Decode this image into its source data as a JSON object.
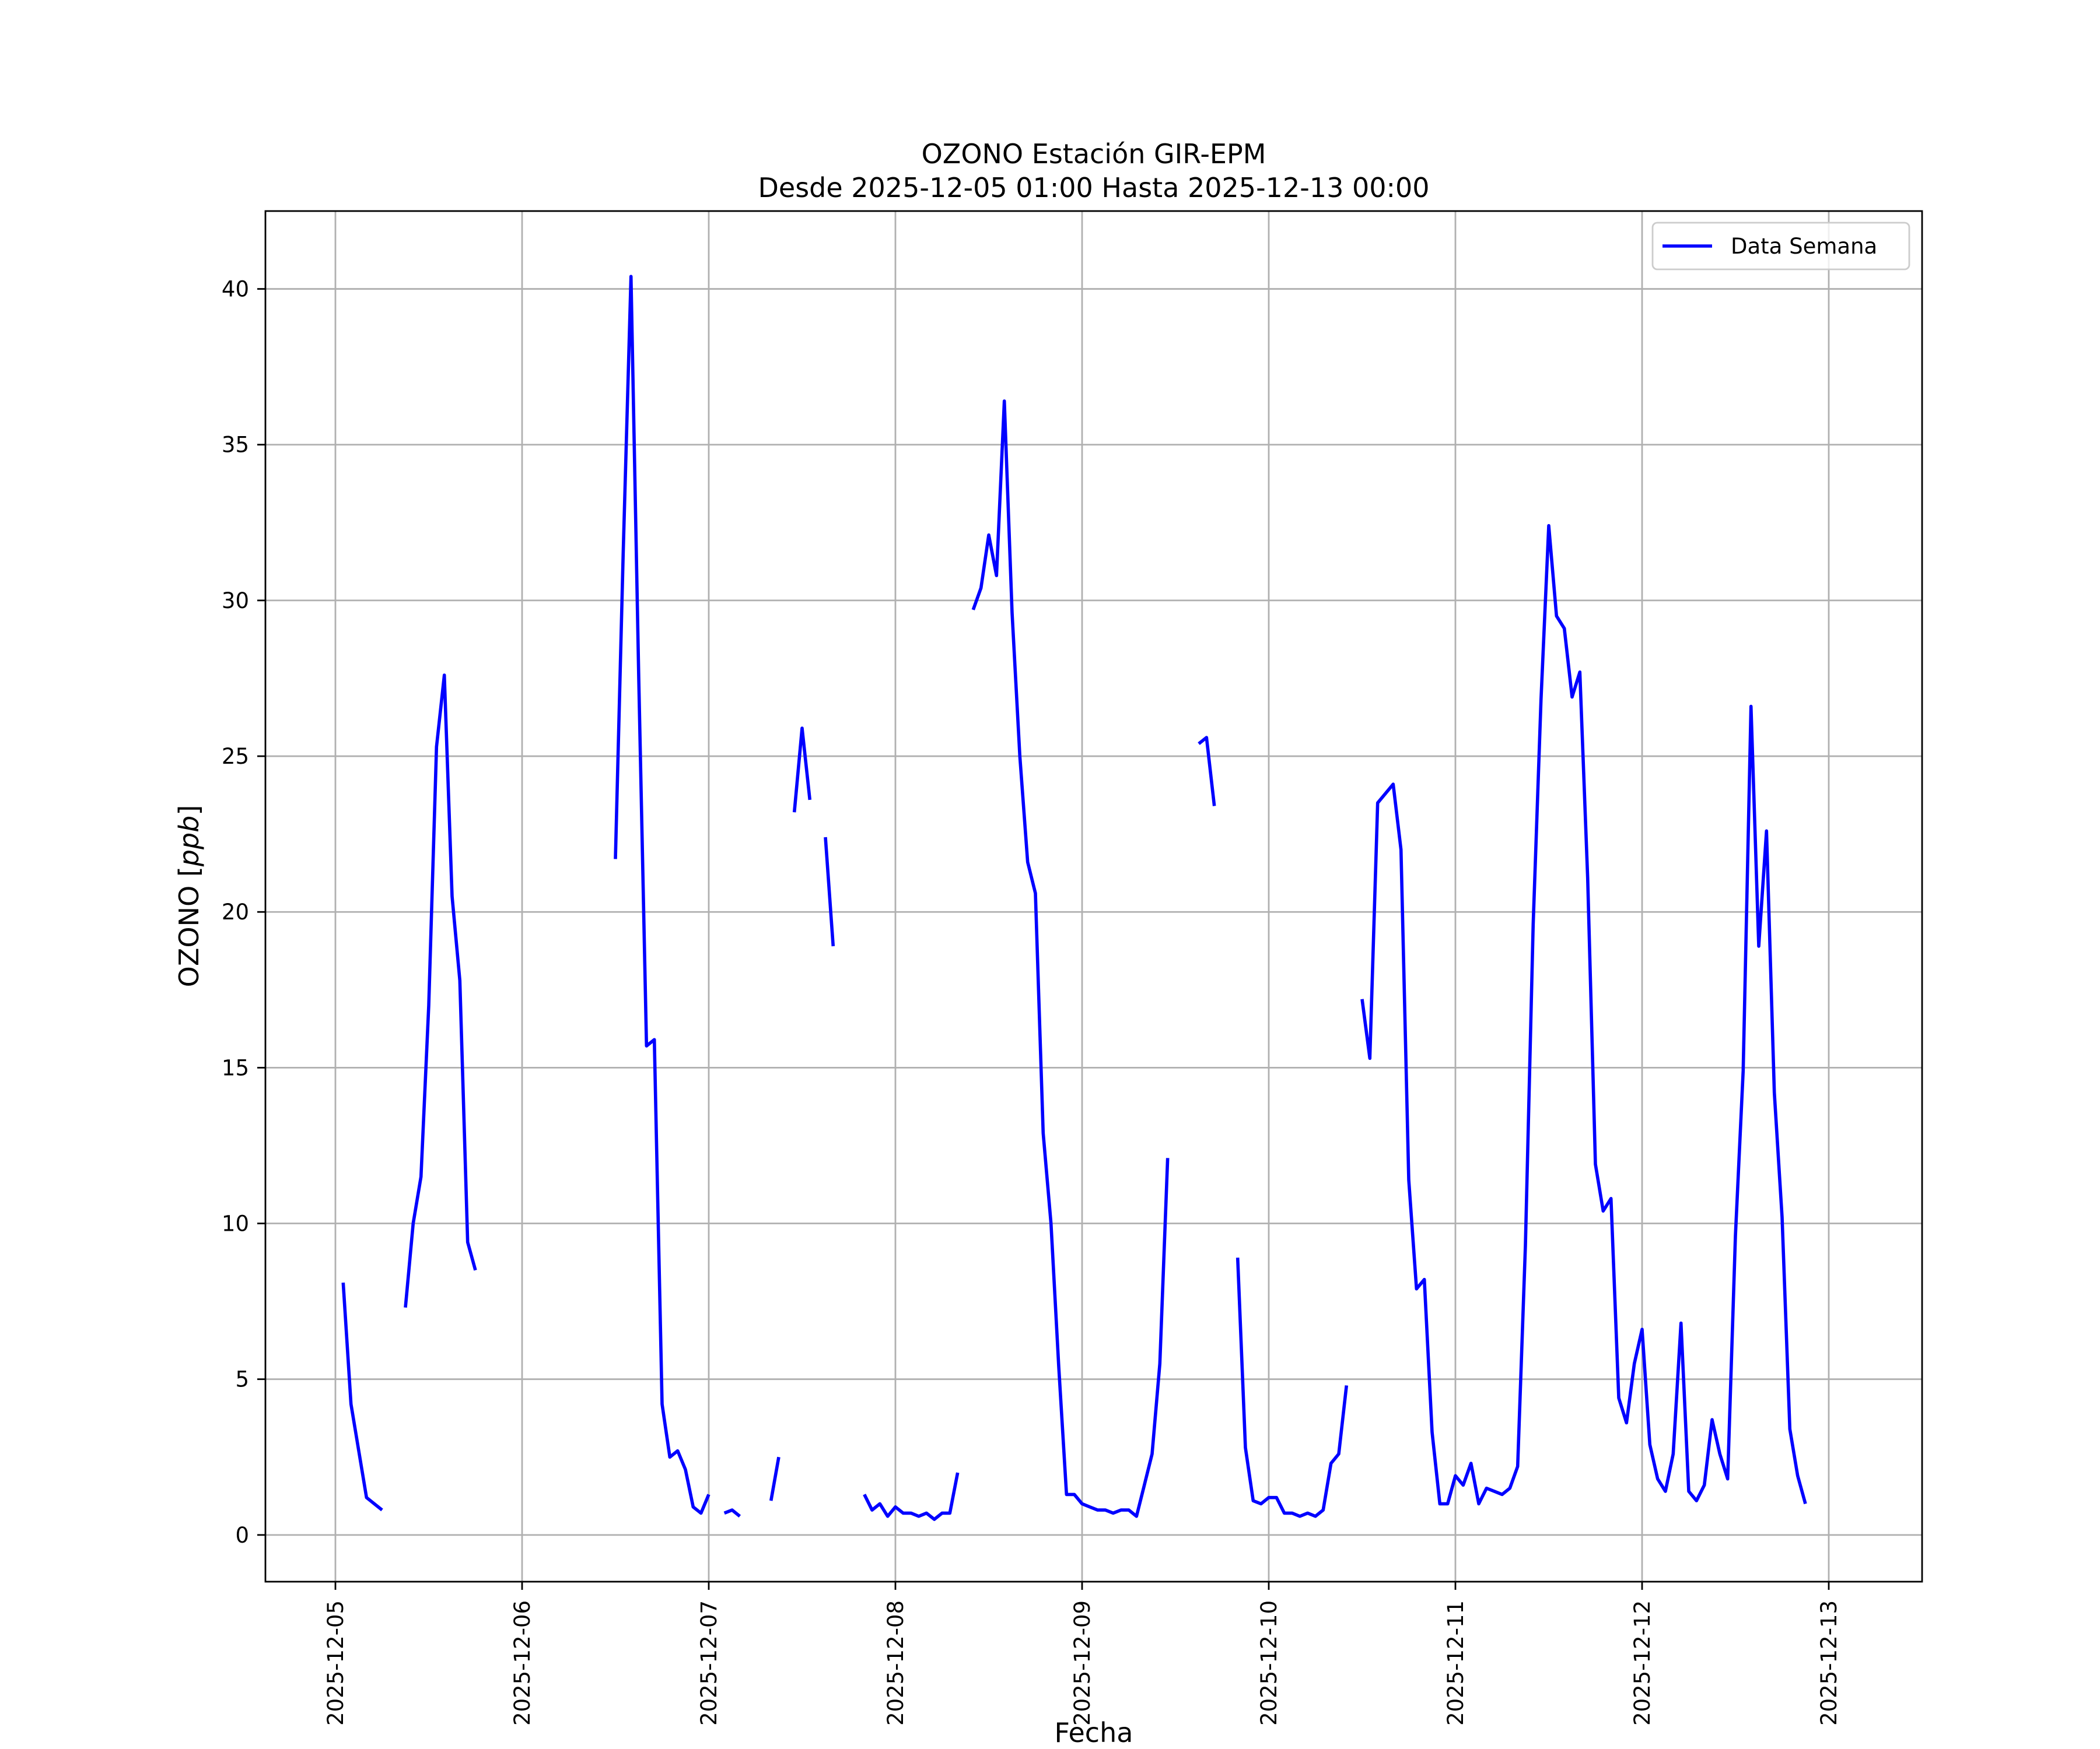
{
  "chart_data": {
    "type": "line",
    "title": "OZONO Estación GIR-EPM",
    "subtitle": "Desde 2025-12-05 01:00 Hasta 2025-12-13 00:00",
    "xlabel": "Fecha",
    "ylabel": "OZONO [ppb]",
    "ylabel_main": "OZONO [",
    "ylabel_unit": "ppb",
    "ylabel_close": "]",
    "xlim": [
      "2025-12-04 15:00",
      "2025-12-13 12:00"
    ],
    "ylim": [
      -1.5,
      42.5
    ],
    "x_ticks": [
      "2025-12-05",
      "2025-12-06",
      "2025-12-07",
      "2025-12-08",
      "2025-12-09",
      "2025-12-10",
      "2025-12-11",
      "2025-12-12",
      "2025-12-13"
    ],
    "y_ticks": [
      0,
      5,
      10,
      15,
      20,
      25,
      30,
      35,
      40
    ],
    "grid": true,
    "legend_position": "top-right",
    "colors": {
      "series": "#0000ff",
      "grid": "#b0b0b0",
      "frame": "#000000"
    },
    "series": [
      {
        "name": "Data Semana",
        "points": [
          [
            "2025-12-05 01:00",
            8.1
          ],
          [
            "2025-12-05 02:00",
            4.2
          ],
          [
            "2025-12-05 03:00",
            2.7
          ],
          [
            "2025-12-05 04:00",
            1.2
          ],
          [
            "2025-12-05 05:00",
            1.0
          ],
          [
            "2025-12-05 06:00",
            0.8
          ],
          [
            "2025-12-05 07:00",
            null
          ],
          [
            "2025-12-05 08:00",
            null
          ],
          [
            "2025-12-05 09:00",
            7.3
          ],
          [
            "2025-12-05 10:00",
            10.0
          ],
          [
            "2025-12-05 11:00",
            11.5
          ],
          [
            "2025-12-05 12:00",
            17.0
          ],
          [
            "2025-12-05 13:00",
            25.3
          ],
          [
            "2025-12-05 14:00",
            27.6
          ],
          [
            "2025-12-05 15:00",
            20.5
          ],
          [
            "2025-12-05 16:00",
            17.8
          ],
          [
            "2025-12-05 17:00",
            9.4
          ],
          [
            "2025-12-05 18:00",
            8.5
          ],
          [
            "2025-12-05 19:00",
            null
          ],
          [
            "2025-12-06 12:00",
            21.7
          ],
          [
            "2025-12-06 13:00",
            31.5
          ],
          [
            "2025-12-06 14:00",
            40.4
          ],
          [
            "2025-12-06 15:00",
            27.5
          ],
          [
            "2025-12-06 16:00",
            15.7
          ],
          [
            "2025-12-06 17:00",
            15.9
          ],
          [
            "2025-12-06 18:00",
            4.2
          ],
          [
            "2025-12-06 19:00",
            2.5
          ],
          [
            "2025-12-06 20:00",
            2.7
          ],
          [
            "2025-12-06 21:00",
            2.1
          ],
          [
            "2025-12-06 22:00",
            0.9
          ],
          [
            "2025-12-06 23:00",
            0.7
          ],
          [
            "2025-12-07 00:00",
            1.3
          ],
          [
            "2025-12-07 01:00",
            null
          ],
          [
            "2025-12-07 02:00",
            0.7
          ],
          [
            "2025-12-07 03:00",
            0.8
          ],
          [
            "2025-12-07 04:00",
            0.6
          ],
          [
            "2025-12-07 05:00",
            null
          ],
          [
            "2025-12-07 06:00",
            null
          ],
          [
            "2025-12-07 07:00",
            null
          ],
          [
            "2025-12-07 08:00",
            1.1
          ],
          [
            "2025-12-07 09:00",
            2.5
          ],
          [
            "2025-12-07 10:00",
            null
          ],
          [
            "2025-12-07 11:00",
            23.2
          ],
          [
            "2025-12-07 12:00",
            25.9
          ],
          [
            "2025-12-07 13:00",
            23.6
          ],
          [
            "2025-12-07 14:00",
            null
          ],
          [
            "2025-12-07 15:00",
            22.4
          ],
          [
            "2025-12-07 16:00",
            18.9
          ],
          [
            "2025-12-07 17:00",
            null
          ],
          [
            "2025-12-07 18:00",
            null
          ],
          [
            "2025-12-07 19:00",
            null
          ],
          [
            "2025-12-07 20:00",
            1.3
          ],
          [
            "2025-12-07 21:00",
            0.8
          ],
          [
            "2025-12-07 22:00",
            1.0
          ],
          [
            "2025-12-07 23:00",
            0.6
          ],
          [
            "2025-12-08 00:00",
            0.9
          ],
          [
            "2025-12-08 01:00",
            0.7
          ],
          [
            "2025-12-08 02:00",
            0.7
          ],
          [
            "2025-12-08 03:00",
            0.6
          ],
          [
            "2025-12-08 04:00",
            0.7
          ],
          [
            "2025-12-08 05:00",
            0.5
          ],
          [
            "2025-12-08 06:00",
            0.7
          ],
          [
            "2025-12-08 07:00",
            0.7
          ],
          [
            "2025-12-08 08:00",
            2.0
          ],
          [
            "2025-12-08 09:00",
            null
          ],
          [
            "2025-12-08 10:00",
            29.7
          ],
          [
            "2025-12-08 11:00",
            30.4
          ],
          [
            "2025-12-08 12:00",
            32.1
          ],
          [
            "2025-12-08 13:00",
            30.8
          ],
          [
            "2025-12-08 14:00",
            36.4
          ],
          [
            "2025-12-08 15:00",
            29.6
          ],
          [
            "2025-12-08 16:00",
            25.0
          ],
          [
            "2025-12-08 17:00",
            21.6
          ],
          [
            "2025-12-08 18:00",
            20.6
          ],
          [
            "2025-12-08 19:00",
            12.9
          ],
          [
            "2025-12-08 20:00",
            10.0
          ],
          [
            "2025-12-08 21:00",
            5.4
          ],
          [
            "2025-12-08 22:00",
            1.3
          ],
          [
            "2025-12-08 23:00",
            1.3
          ],
          [
            "2025-12-09 00:00",
            1.0
          ],
          [
            "2025-12-09 01:00",
            0.9
          ],
          [
            "2025-12-09 02:00",
            0.8
          ],
          [
            "2025-12-09 03:00",
            0.8
          ],
          [
            "2025-12-09 04:00",
            0.7
          ],
          [
            "2025-12-09 05:00",
            0.8
          ],
          [
            "2025-12-09 06:00",
            0.8
          ],
          [
            "2025-12-09 07:00",
            0.6
          ],
          [
            "2025-12-09 08:00",
            1.6
          ],
          [
            "2025-12-09 09:00",
            2.6
          ],
          [
            "2025-12-09 10:00",
            5.5
          ],
          [
            "2025-12-09 11:00",
            12.1
          ],
          [
            "2025-12-09 12:00",
            null
          ],
          [
            "2025-12-09 13:00",
            null
          ],
          [
            "2025-12-09 14:00",
            null
          ],
          [
            "2025-12-09 15:00",
            25.4
          ],
          [
            "2025-12-09 16:00",
            25.6
          ],
          [
            "2025-12-09 17:00",
            23.4
          ],
          [
            "2025-12-09 18:00",
            null
          ],
          [
            "2025-12-09 19:00",
            null
          ],
          [
            "2025-12-09 20:00",
            8.9
          ],
          [
            "2025-12-09 21:00",
            2.8
          ],
          [
            "2025-12-09 22:00",
            1.1
          ],
          [
            "2025-12-09 23:00",
            1.0
          ],
          [
            "2025-12-10 00:00",
            1.2
          ],
          [
            "2025-12-10 01:00",
            1.2
          ],
          [
            "2025-12-10 02:00",
            0.7
          ],
          [
            "2025-12-10 03:00",
            0.7
          ],
          [
            "2025-12-10 04:00",
            0.6
          ],
          [
            "2025-12-10 05:00",
            0.7
          ],
          [
            "2025-12-10 06:00",
            0.6
          ],
          [
            "2025-12-10 07:00",
            0.8
          ],
          [
            "2025-12-10 08:00",
            2.3
          ],
          [
            "2025-12-10 09:00",
            2.6
          ],
          [
            "2025-12-10 10:00",
            4.8
          ],
          [
            "2025-12-10 11:00",
            null
          ],
          [
            "2025-12-10 12:00",
            17.2
          ],
          [
            "2025-12-10 13:00",
            15.3
          ],
          [
            "2025-12-10 14:00",
            23.5
          ],
          [
            "2025-12-10 15:00",
            23.8
          ],
          [
            "2025-12-10 16:00",
            24.1
          ],
          [
            "2025-12-10 17:00",
            22.0
          ],
          [
            "2025-12-10 18:00",
            11.4
          ],
          [
            "2025-12-10 19:00",
            7.9
          ],
          [
            "2025-12-10 20:00",
            8.2
          ],
          [
            "2025-12-10 21:00",
            3.3
          ],
          [
            "2025-12-10 22:00",
            1.0
          ],
          [
            "2025-12-10 23:00",
            1.0
          ],
          [
            "2025-12-11 00:00",
            1.9
          ],
          [
            "2025-12-11 01:00",
            1.6
          ],
          [
            "2025-12-11 02:00",
            2.3
          ],
          [
            "2025-12-11 03:00",
            1.0
          ],
          [
            "2025-12-11 04:00",
            1.5
          ],
          [
            "2025-12-11 05:00",
            1.4
          ],
          [
            "2025-12-11 06:00",
            1.3
          ],
          [
            "2025-12-11 07:00",
            1.5
          ],
          [
            "2025-12-11 08:00",
            2.2
          ],
          [
            "2025-12-11 09:00",
            9.3
          ],
          [
            "2025-12-11 10:00",
            19.6
          ],
          [
            "2025-12-11 11:00",
            26.8
          ],
          [
            "2025-12-11 12:00",
            32.4
          ],
          [
            "2025-12-11 13:00",
            29.5
          ],
          [
            "2025-12-11 14:00",
            29.1
          ],
          [
            "2025-12-11 15:00",
            26.9
          ],
          [
            "2025-12-11 16:00",
            27.7
          ],
          [
            "2025-12-11 17:00",
            21.1
          ],
          [
            "2025-12-11 18:00",
            11.9
          ],
          [
            "2025-12-11 19:00",
            10.4
          ],
          [
            "2025-12-11 20:00",
            10.8
          ],
          [
            "2025-12-11 21:00",
            4.4
          ],
          [
            "2025-12-11 22:00",
            3.6
          ],
          [
            "2025-12-11 23:00",
            5.5
          ],
          [
            "2025-12-12 00:00",
            6.6
          ],
          [
            "2025-12-12 01:00",
            2.9
          ],
          [
            "2025-12-12 02:00",
            1.8
          ],
          [
            "2025-12-12 03:00",
            1.4
          ],
          [
            "2025-12-12 04:00",
            2.6
          ],
          [
            "2025-12-12 05:00",
            6.8
          ],
          [
            "2025-12-12 06:00",
            1.4
          ],
          [
            "2025-12-12 07:00",
            1.1
          ],
          [
            "2025-12-12 08:00",
            1.6
          ],
          [
            "2025-12-12 09:00",
            3.7
          ],
          [
            "2025-12-12 10:00",
            2.6
          ],
          [
            "2025-12-12 11:00",
            1.8
          ],
          [
            "2025-12-12 12:00",
            9.6
          ],
          [
            "2025-12-12 13:00",
            14.9
          ],
          [
            "2025-12-12 14:00",
            26.6
          ],
          [
            "2025-12-12 15:00",
            18.9
          ],
          [
            "2025-12-12 16:00",
            22.6
          ],
          [
            "2025-12-12 17:00",
            14.2
          ],
          [
            "2025-12-12 18:00",
            10.2
          ],
          [
            "2025-12-12 19:00",
            3.4
          ],
          [
            "2025-12-12 20:00",
            1.9
          ],
          [
            "2025-12-12 21:00",
            1.0
          ]
        ]
      }
    ]
  }
}
